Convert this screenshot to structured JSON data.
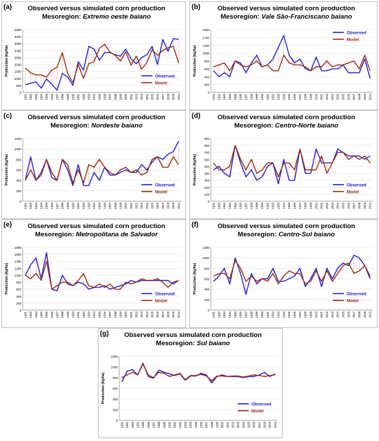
{
  "chart_data": [
    {
      "letter": "(a)",
      "type": "line",
      "title": "Observed versus simulated corn production",
      "subtitle_prefix": "Mesoregion:",
      "subtitle_region": "Extremo oeste baiano",
      "ylabel": "Production (kg/ha)",
      "ylim": [
        0,
        4500
      ],
      "yticks": [
        0,
        500,
        1000,
        1500,
        2000,
        2500,
        3000,
        3500,
        4000,
        4500
      ],
      "legend_position": "bottom-right",
      "years": [
        "1981",
        "1982",
        "1983",
        "1984",
        "1985",
        "1986",
        "1987",
        "1988",
        "1989",
        "1990",
        "1991",
        "1992",
        "1993",
        "1994",
        "1995",
        "1996",
        "1997",
        "1998",
        "1999",
        "2000",
        "2001",
        "2002",
        "2003",
        "2004",
        "2005",
        "2006",
        "2007",
        "2008",
        "2009",
        "2010"
      ],
      "series": [
        {
          "name": "Observed",
          "color": "#1f1fd0",
          "values": [
            550,
            650,
            750,
            300,
            950,
            600,
            150,
            1350,
            1100,
            500,
            2200,
            1600,
            3300,
            3100,
            2300,
            2850,
            2850,
            2700,
            2600,
            3100,
            2400,
            2050,
            2500,
            2700,
            3300,
            2000,
            3800,
            2950,
            3850,
            3800
          ]
        },
        {
          "name": "Model",
          "color": "#9c2a10",
          "values": [
            1750,
            1400,
            1250,
            1250,
            1100,
            1600,
            1800,
            2850,
            1350,
            700,
            2000,
            1000,
            2050,
            2200,
            3150,
            3450,
            2900,
            2650,
            2250,
            2900,
            1950,
            2600,
            1650,
            2150,
            3050,
            2650,
            3000,
            3200,
            3300,
            2100
          ]
        }
      ]
    },
    {
      "letter": "(b)",
      "type": "line",
      "title": "Observed versus simulated corn production",
      "subtitle_prefix": "Mesoregion:",
      "subtitle_region": "Vale São-Franciscano baiano",
      "ylabel": "Production (kg/ha)",
      "ylim": [
        0,
        1600
      ],
      "yticks": [
        0,
        200,
        400,
        600,
        800,
        1000,
        1200,
        1400,
        1600
      ],
      "legend_position": "top-right",
      "years": [
        "1981",
        "1982",
        "1983",
        "1984",
        "1985",
        "1986",
        "1987",
        "1988",
        "1989",
        "1990",
        "1991",
        "1992",
        "1993",
        "1994",
        "1995",
        "1996",
        "1997",
        "1998",
        "1999",
        "2000",
        "2001",
        "2002",
        "2003",
        "2004",
        "2005",
        "2006",
        "2007",
        "2008",
        "2009",
        "2010"
      ],
      "series": [
        {
          "name": "Observed",
          "color": "#1f1fd0",
          "values": [
            550,
            400,
            500,
            400,
            800,
            750,
            500,
            750,
            950,
            650,
            700,
            850,
            1150,
            1450,
            950,
            750,
            850,
            600,
            550,
            900,
            550,
            550,
            600,
            600,
            700,
            500,
            500,
            500,
            850,
            350
          ]
        },
        {
          "name": "Model",
          "color": "#9c2a10",
          "values": [
            650,
            700,
            750,
            550,
            800,
            700,
            650,
            700,
            800,
            650,
            700,
            550,
            550,
            950,
            750,
            700,
            700,
            650,
            550,
            650,
            650,
            800,
            650,
            700,
            700,
            750,
            800,
            600,
            950,
            550
          ]
        }
      ]
    },
    {
      "letter": "(c)",
      "type": "line",
      "title": "Observed versus simulated corn production",
      "subtitle_prefix": "Mesoregion:",
      "subtitle_region": "Nordeste baiano",
      "ylabel": "Production (kg/ha)",
      "ylim": [
        0,
        1200
      ],
      "yticks": [
        0,
        200,
        400,
        600,
        800,
        1000,
        1200
      ],
      "legend_position": "bottom-right",
      "years": [
        "1981",
        "1982",
        "1983",
        "1984",
        "1985",
        "1986",
        "1987",
        "1988",
        "1989",
        "1990",
        "1991",
        "1992",
        "1993",
        "1994",
        "1995",
        "1996",
        "1997",
        "1998",
        "1999",
        "2000",
        "2001",
        "2002",
        "2003",
        "2004",
        "2005",
        "2006",
        "2007",
        "2008",
        "2009",
        "2010"
      ],
      "series": [
        {
          "name": "Observed",
          "color": "#1f1fd0",
          "values": [
            400,
            850,
            400,
            550,
            800,
            450,
            400,
            800,
            600,
            300,
            700,
            300,
            300,
            550,
            400,
            650,
            500,
            500,
            550,
            600,
            550,
            550,
            700,
            600,
            750,
            850,
            800,
            900,
            950,
            1150
          ]
        },
        {
          "name": "Model",
          "color": "#9c2a10",
          "values": [
            400,
            600,
            400,
            500,
            800,
            550,
            400,
            800,
            700,
            350,
            600,
            350,
            700,
            650,
            800,
            650,
            550,
            500,
            600,
            650,
            550,
            600,
            500,
            550,
            800,
            850,
            650,
            650,
            850,
            700
          ]
        }
      ]
    },
    {
      "letter": "(d)",
      "type": "line",
      "title": "Observed versus simulated corn production",
      "subtitle_prefix": "Mesoregion:",
      "subtitle_region": "Centro-Norte baiano",
      "ylabel": "Production (kg/ha)",
      "ylim": [
        0,
        900
      ],
      "yticks": [
        0,
        100,
        200,
        300,
        400,
        500,
        600,
        700,
        800,
        900
      ],
      "legend_position": "bottom-right",
      "years": [
        "1981",
        "1982",
        "1983",
        "1984",
        "1985",
        "1986",
        "1987",
        "1988",
        "1989",
        "1990",
        "1991",
        "1992",
        "1993",
        "1994",
        "1995",
        "1996",
        "1997",
        "1998",
        "1999",
        "2000",
        "2001",
        "2002",
        "2003",
        "2004",
        "2005",
        "2006",
        "2007",
        "2008",
        "2009",
        "2010"
      ],
      "series": [
        {
          "name": "Observed",
          "color": "#1f1fd0",
          "values": [
            450,
            500,
            400,
            350,
            800,
            550,
            350,
            450,
            300,
            350,
            500,
            550,
            250,
            600,
            300,
            300,
            750,
            400,
            400,
            750,
            550,
            550,
            550,
            750,
            700,
            650,
            650,
            650,
            600,
            650
          ]
        },
        {
          "name": "Model",
          "color": "#9c2a10",
          "values": [
            550,
            450,
            450,
            500,
            800,
            600,
            450,
            600,
            400,
            450,
            550,
            550,
            350,
            550,
            550,
            450,
            750,
            450,
            450,
            450,
            650,
            400,
            550,
            700,
            700,
            600,
            650,
            600,
            650,
            550
          ]
        }
      ]
    },
    {
      "letter": "(e)",
      "type": "line",
      "title": "Observed versus simulated corn production",
      "subtitle_prefix": "Mesoregion:",
      "subtitle_region": "Metropolitana de Salvador",
      "ylabel": "Production (kg/ha)",
      "ylim": [
        0,
        1800
      ],
      "yticks": [
        0,
        200,
        400,
        600,
        800,
        1000,
        1200,
        1400,
        1600,
        1800
      ],
      "legend_position": "bottom-right",
      "years": [
        "1981",
        "1982",
        "1983",
        "1984",
        "1985",
        "1986",
        "1987",
        "1988",
        "1989",
        "1990",
        "1991",
        "1992",
        "1993",
        "1994",
        "1995",
        "1996",
        "1997",
        "1998",
        "1999",
        "2000",
        "2001",
        "2002",
        "2003",
        "2004",
        "2005",
        "2006",
        "2007",
        "2008",
        "2009",
        "2010"
      ],
      "series": [
        {
          "name": "Observed",
          "color": "#1f1fd0",
          "values": [
            1000,
            1300,
            1500,
            900,
            1650,
            600,
            550,
            1000,
            750,
            700,
            800,
            750,
            600,
            650,
            650,
            700,
            600,
            650,
            700,
            750,
            850,
            800,
            850,
            850,
            850,
            850,
            850,
            850,
            750,
            850
          ]
        },
        {
          "name": "Model",
          "color": "#9c2a10",
          "values": [
            1000,
            900,
            1050,
            850,
            1400,
            600,
            700,
            800,
            800,
            700,
            850,
            1050,
            700,
            650,
            750,
            650,
            750,
            600,
            600,
            800,
            750,
            800,
            900,
            850,
            850,
            900,
            800,
            650,
            800,
            850
          ]
        }
      ]
    },
    {
      "letter": "(f)",
      "type": "line",
      "title": "Observed versus simulated corn production",
      "subtitle_prefix": "Mesoregion:",
      "subtitle_region": "Centro-Sul baiano",
      "ylabel": "Production (kg/ha)",
      "ylim": [
        0,
        1200
      ],
      "yticks": [
        0,
        200,
        400,
        600,
        800,
        1000,
        1200
      ],
      "legend_position": "bottom-right",
      "years": [
        "1981",
        "1982",
        "1983",
        "1984",
        "1985",
        "1986",
        "1987",
        "1988",
        "1989",
        "1990",
        "1991",
        "1992",
        "1993",
        "1994",
        "1995",
        "1996",
        "1997",
        "1998",
        "1999",
        "2000",
        "2001",
        "2002",
        "2003",
        "2004",
        "2005",
        "2006",
        "2007",
        "2008",
        "2009",
        "2010"
      ],
      "series": [
        {
          "name": "Observed",
          "color": "#1f1fd0",
          "values": [
            550,
            650,
            800,
            500,
            1000,
            700,
            300,
            700,
            500,
            600,
            600,
            800,
            550,
            550,
            600,
            650,
            800,
            450,
            600,
            800,
            450,
            800,
            600,
            800,
            900,
            850,
            1050,
            1000,
            850,
            600
          ]
        },
        {
          "name": "Model",
          "color": "#9c2a10",
          "values": [
            650,
            700,
            700,
            600,
            950,
            800,
            550,
            650,
            550,
            600,
            550,
            700,
            500,
            650,
            750,
            700,
            700,
            500,
            550,
            750,
            550,
            750,
            550,
            700,
            850,
            900,
            700,
            750,
            850,
            650
          ]
        }
      ]
    },
    {
      "letter": "(g)",
      "type": "line",
      "title": "Observed versus simulated corn production",
      "subtitle_prefix": "Mesoregion:",
      "subtitle_region": "Sul baiano",
      "ylabel": "Production (kg/ha)",
      "ylim": [
        0,
        1200
      ],
      "yticks": [
        0,
        200,
        400,
        600,
        800,
        1000,
        1200
      ],
      "legend_position": "bottom-right",
      "years": [
        "1981",
        "1982",
        "1983",
        "1984",
        "1985",
        "1986",
        "1987",
        "1988",
        "1989",
        "1990",
        "1991",
        "1992",
        "1993",
        "1994",
        "1995",
        "1996",
        "1997",
        "1998",
        "1999",
        "2000",
        "2001",
        "2002",
        "2003",
        "2004",
        "2005",
        "2006",
        "2007",
        "2008",
        "2009",
        "2010"
      ],
      "series": [
        {
          "name": "Observed",
          "color": "#1f1fd0",
          "values": [
            720,
            920,
            950,
            850,
            1070,
            820,
            790,
            940,
            900,
            870,
            840,
            870,
            750,
            830,
            830,
            880,
            850,
            700,
            820,
            850,
            820,
            820,
            820,
            800,
            820,
            820,
            850,
            900,
            820,
            870
          ]
        },
        {
          "name": "Model",
          "color": "#9c2a10",
          "values": [
            800,
            850,
            900,
            850,
            1050,
            850,
            800,
            900,
            880,
            820,
            850,
            880,
            760,
            840,
            840,
            860,
            830,
            740,
            830,
            830,
            820,
            830,
            830,
            810,
            830,
            850,
            840,
            820,
            840,
            850
          ]
        }
      ]
    }
  ]
}
